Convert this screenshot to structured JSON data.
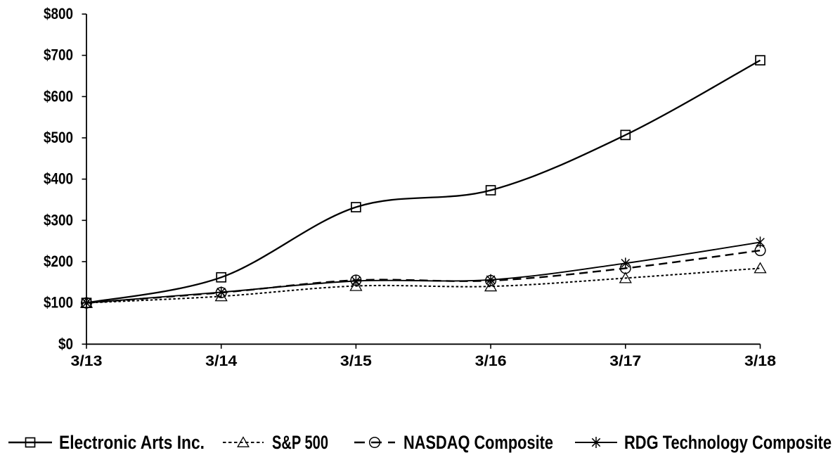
{
  "chart_data": {
    "type": "line",
    "title": "",
    "xlabel": "",
    "ylabel": "",
    "categories": [
      "3/13",
      "3/14",
      "3/15",
      "3/16",
      "3/17",
      "3/18"
    ],
    "series": [
      {
        "name": "Electronic Arts Inc.",
        "values": [
          100,
          162,
          332,
          373,
          507,
          688
        ],
        "line_style": "solid",
        "marker": "square"
      },
      {
        "name": "S&P 500",
        "values": [
          100,
          116,
          141,
          140,
          160,
          184
        ],
        "line_style": "dotted",
        "marker": "triangle"
      },
      {
        "name": "NASDAQ Composite",
        "values": [
          100,
          125,
          155,
          154,
          184,
          227
        ],
        "line_style": "dashed",
        "marker": "circle"
      },
      {
        "name": "RDG Technology Composite",
        "values": [
          100,
          126,
          153,
          156,
          196,
          247
        ],
        "line_style": "solid",
        "marker": "star"
      }
    ],
    "y_ticks": [
      "$0",
      "$100",
      "$200",
      "$300",
      "$400",
      "$500",
      "$600",
      "$700",
      "$800"
    ],
    "y_tick_values": [
      0,
      100,
      200,
      300,
      400,
      500,
      600,
      700,
      800
    ],
    "ylim": [
      0,
      800
    ],
    "grid": false,
    "legend_position": "bottom",
    "colors": {
      "line": "#000000",
      "background": "#ffffff"
    }
  }
}
